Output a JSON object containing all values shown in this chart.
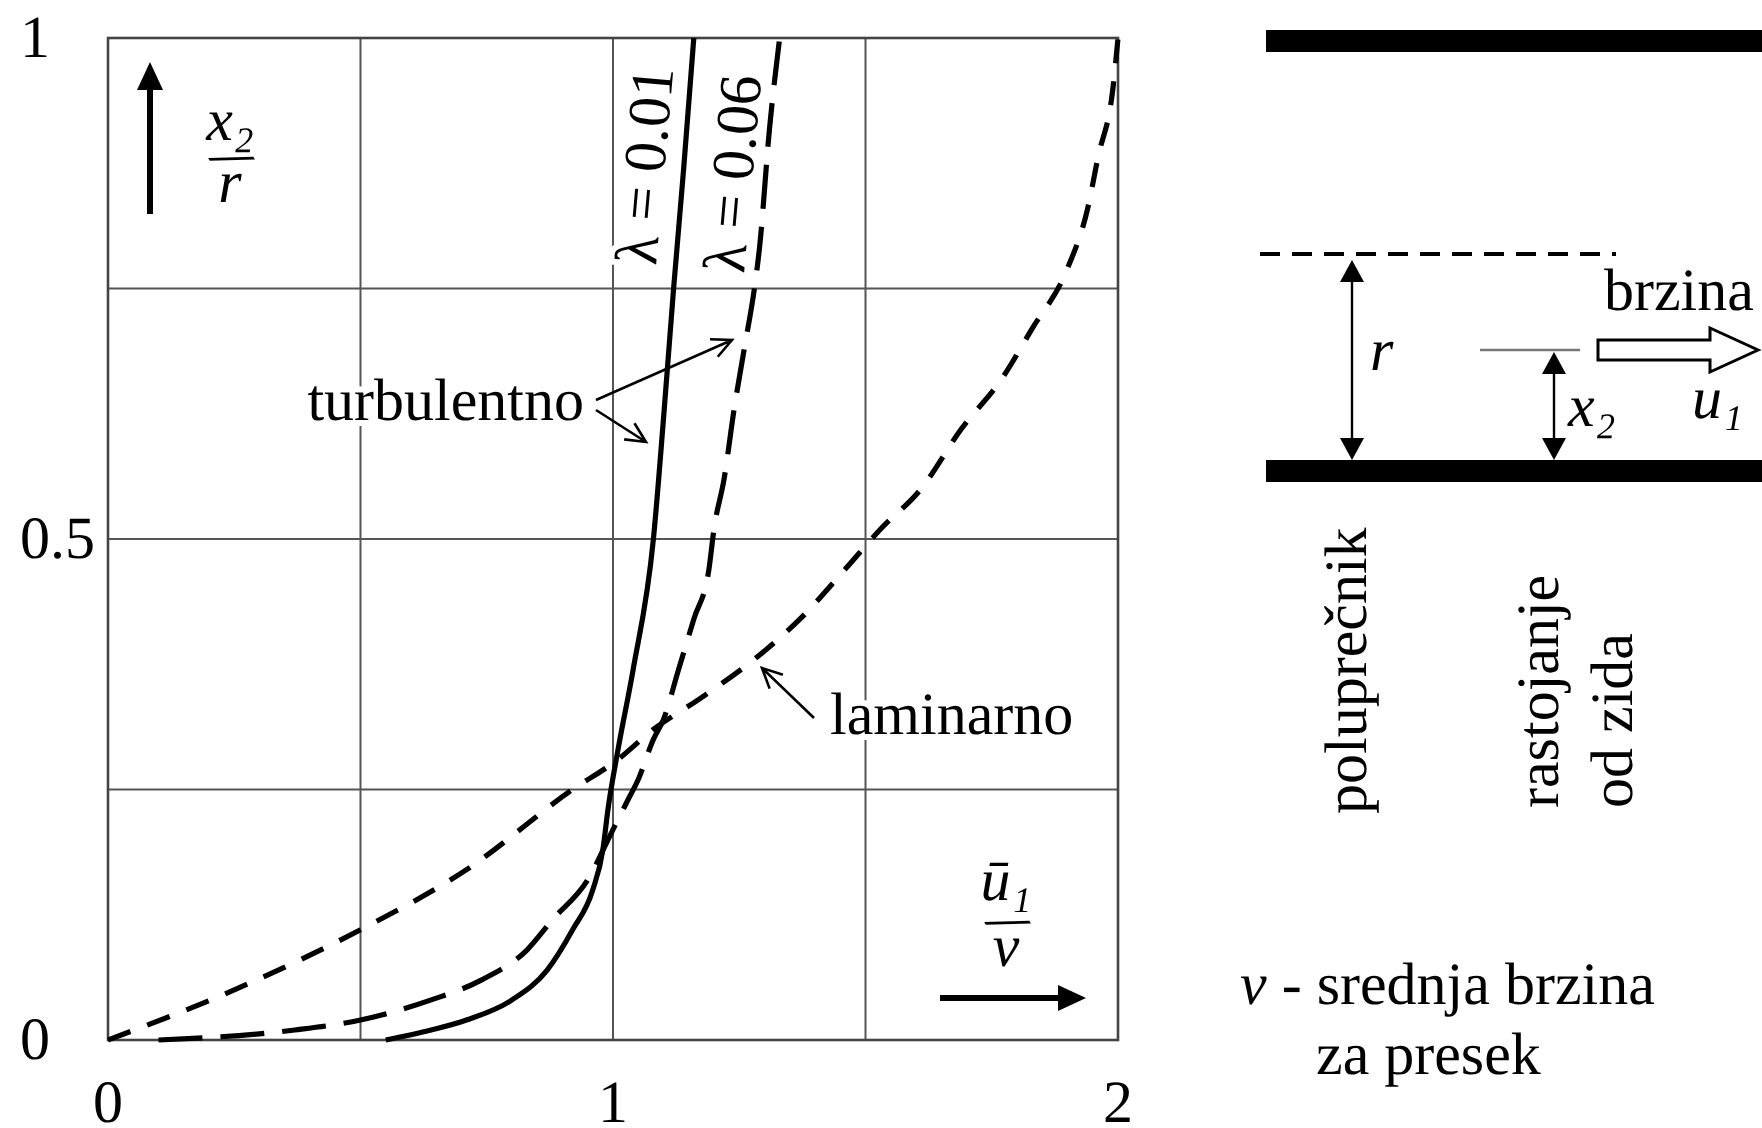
{
  "chart_data": {
    "type": "line",
    "xlabel": "ū₁/v",
    "ylabel": "x₂/r",
    "xlim": [
      0,
      2
    ],
    "ylim": [
      0,
      1
    ],
    "xticks": [
      0,
      {
        "value": 0.5,
        "label": null
      },
      1,
      {
        "value": 1.5,
        "label": null
      },
      2
    ],
    "yticks": [
      0,
      {
        "value": 0.25,
        "label": null
      },
      0.5,
      {
        "value": 0.75,
        "label": null
      },
      1
    ],
    "grid": true,
    "series": [
      {
        "name": "λ = 0.01",
        "color": "#000000",
        "line_style": "solid",
        "x": [
          0.55,
          0.64,
          0.71,
          0.8,
          0.87,
          0.92,
          0.96,
          0.98,
          0.99,
          1.01,
          1.04,
          1.08,
          1.1,
          1.12,
          1.14,
          1.16
        ],
        "values": [
          0,
          0.01,
          0.02,
          0.04,
          0.07,
          0.11,
          0.15,
          0.19,
          0.23,
          0.29,
          0.37,
          0.5,
          0.62,
          0.75,
          0.87,
          1
        ]
      },
      {
        "name": "λ = 0.06",
        "color": "#000000",
        "line_style": "dashed",
        "x": [
          0.1,
          0.37,
          0.5,
          0.64,
          0.74,
          0.83,
          0.88,
          0.95,
          1,
          1.03,
          1.05,
          1.08,
          1.1,
          1.13,
          1.16,
          1.19,
          1.2,
          1.22,
          1.24,
          1.26,
          1.28,
          1.29,
          1.31,
          1.33
        ],
        "values": [
          0,
          0.01,
          0.02,
          0.04,
          0.06,
          0.09,
          0.12,
          0.16,
          0.21,
          0.24,
          0.26,
          0.3,
          0.32,
          0.37,
          0.42,
          0.47,
          0.51,
          0.56,
          0.63,
          0.69,
          0.75,
          0.79,
          0.91,
          1
        ]
      },
      {
        "color": "#000000",
        "line_style": "dashed",
        "x": [
          0,
          0.25,
          0.5,
          0.71,
          0.92,
          1.01,
          1.08,
          1.17,
          1.28,
          1.37,
          1.46,
          1.53,
          1.61,
          1.69,
          1.77,
          1.83,
          1.9,
          1.94,
          1.96,
          1.99,
          2
        ],
        "values": [
          0,
          0.05,
          0.11,
          0.17,
          0.25,
          0.28,
          0.31,
          0.34,
          0.38,
          0.42,
          0.47,
          0.51,
          0.55,
          0.61,
          0.66,
          0.71,
          0.77,
          0.83,
          0.88,
          0.95,
          1
        ]
      }
    ],
    "annotations": [
      "turbulentno",
      "laminarno",
      "brzina",
      "u₁",
      "r",
      "x₂",
      "poluprečnik",
      "rastojanje\nod zida",
      "v - srednja brzina\nza presek"
    ]
  }
}
